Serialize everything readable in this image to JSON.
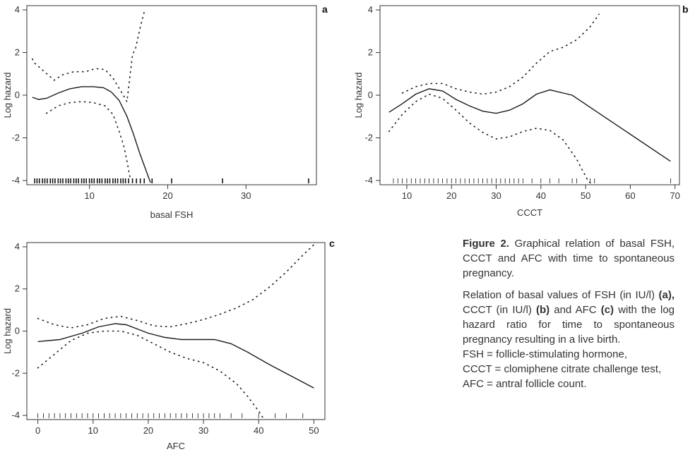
{
  "chart_data": [
    {
      "type": "line",
      "panel": "a",
      "xlabel": "basal FSH",
      "ylabel": "Log hazard",
      "xlim": [
        2,
        39
      ],
      "ylim": [
        -4.2,
        4.2
      ],
      "xticks": [
        10,
        20,
        30
      ],
      "yticks": [
        -4,
        -2,
        0,
        2,
        4
      ],
      "series": [
        {
          "style": "solid",
          "points": [
            [
              2.7,
              -0.1
            ],
            [
              3.5,
              -0.2
            ],
            [
              4.5,
              -0.15
            ],
            [
              6,
              0.1
            ],
            [
              7.5,
              0.3
            ],
            [
              9,
              0.4
            ],
            [
              10.5,
              0.4
            ],
            [
              11.8,
              0.35
            ],
            [
              12.8,
              0.15
            ],
            [
              13.8,
              -0.25
            ],
            [
              14.8,
              -1.0
            ],
            [
              15.6,
              -1.8
            ],
            [
              16.4,
              -2.7
            ],
            [
              17.2,
              -3.5
            ],
            [
              17.8,
              -4.1
            ]
          ]
        },
        {
          "style": "dotted",
          "points": [
            [
              2.7,
              1.7
            ],
            [
              3,
              1.5
            ],
            [
              5.5,
              0.7
            ],
            [
              6.5,
              0.95
            ],
            [
              8,
              1.1
            ],
            [
              9.5,
              1.1
            ],
            [
              10.8,
              1.25
            ],
            [
              12,
              1.2
            ],
            [
              13,
              0.8
            ],
            [
              14,
              0.2
            ],
            [
              14.8,
              -0.3
            ],
            [
              15.5,
              1.9
            ],
            [
              15.9,
              2.2
            ],
            [
              16.5,
              3.2
            ],
            [
              17,
              3.9
            ]
          ]
        },
        {
          "style": "dotted",
          "points": [
            [
              4.5,
              -0.85
            ],
            [
              6,
              -0.5
            ],
            [
              7.5,
              -0.35
            ],
            [
              9,
              -0.3
            ],
            [
              10.5,
              -0.35
            ],
            [
              12,
              -0.5
            ],
            [
              13,
              -0.9
            ],
            [
              13.8,
              -1.7
            ],
            [
              14.4,
              -2.4
            ],
            [
              14.8,
              -3.1
            ],
            [
              15.2,
              -3.9
            ]
          ]
        }
      ],
      "rug": [
        3,
        3.3,
        3.6,
        4,
        4.3,
        4.6,
        5,
        5.3,
        5.6,
        6,
        6.3,
        6.6,
        7,
        7.3,
        7.6,
        8,
        8.3,
        8.6,
        9,
        9.3,
        9.6,
        10,
        10.3,
        10.6,
        11,
        11.3,
        11.6,
        12,
        12.3,
        12.6,
        13,
        13.3,
        13.6,
        14,
        14.3,
        14.6,
        15,
        15.5,
        16,
        16.5,
        17,
        18,
        20.5,
        27,
        38
      ]
    },
    {
      "type": "line",
      "panel": "b",
      "xlabel": "CCCT",
      "ylabel": "Log hazard",
      "xlim": [
        4,
        71
      ],
      "ylim": [
        -4.2,
        4.2
      ],
      "xticks": [
        10,
        20,
        30,
        40,
        50,
        60,
        70
      ],
      "yticks": [
        -4,
        -2,
        0,
        2,
        4
      ],
      "series": [
        {
          "style": "solid",
          "points": [
            [
              6,
              -0.8
            ],
            [
              9,
              -0.4
            ],
            [
              12,
              0.05
            ],
            [
              15,
              0.3
            ],
            [
              18,
              0.2
            ],
            [
              21,
              -0.2
            ],
            [
              24,
              -0.5
            ],
            [
              27,
              -0.75
            ],
            [
              30,
              -0.85
            ],
            [
              33,
              -0.7
            ],
            [
              36,
              -0.4
            ],
            [
              39,
              0.05
            ],
            [
              42,
              0.25
            ],
            [
              47,
              0.0
            ],
            [
              69,
              -3.1
            ]
          ]
        },
        {
          "style": "dotted",
          "points": [
            [
              9,
              0.1
            ],
            [
              12,
              0.4
            ],
            [
              15,
              0.55
            ],
            [
              18,
              0.55
            ],
            [
              21,
              0.3
            ],
            [
              24,
              0.15
            ],
            [
              27,
              0.05
            ],
            [
              30,
              0.15
            ],
            [
              33,
              0.4
            ],
            [
              36,
              0.85
            ],
            [
              39,
              1.5
            ],
            [
              42,
              2.05
            ],
            [
              45,
              2.25
            ],
            [
              48,
              2.6
            ],
            [
              51,
              3.2
            ],
            [
              53,
              3.8
            ]
          ]
        },
        {
          "style": "dotted",
          "points": [
            [
              6,
              -1.7
            ],
            [
              9,
              -0.9
            ],
            [
              12,
              -0.3
            ],
            [
              15,
              0.05
            ],
            [
              18,
              -0.15
            ],
            [
              21,
              -0.7
            ],
            [
              24,
              -1.3
            ],
            [
              27,
              -1.75
            ],
            [
              30,
              -2.05
            ],
            [
              33,
              -1.95
            ],
            [
              36,
              -1.7
            ],
            [
              39,
              -1.55
            ],
            [
              42,
              -1.65
            ],
            [
              45,
              -2.1
            ],
            [
              48,
              -3.0
            ],
            [
              50.5,
              -4.0
            ],
            [
              51.5,
              -4.2
            ]
          ]
        }
      ],
      "rug": [
        7,
        8,
        9,
        10,
        11,
        12,
        13,
        14,
        15,
        16,
        17,
        18,
        19,
        20,
        21,
        22,
        23,
        24,
        25,
        26,
        27,
        28,
        29,
        30,
        31,
        32,
        33,
        34,
        35,
        36,
        38,
        40,
        42,
        44,
        47,
        48,
        51,
        52,
        69
      ]
    },
    {
      "type": "line",
      "panel": "c",
      "xlabel": "AFC",
      "ylabel": "Log hazard",
      "xlim": [
        -2,
        52
      ],
      "ylim": [
        -4.2,
        4.2
      ],
      "xticks": [
        0,
        10,
        20,
        30,
        40,
        50
      ],
      "yticks": [
        -4,
        -2,
        0,
        2,
        4
      ],
      "series": [
        {
          "style": "solid",
          "points": [
            [
              0,
              -0.5
            ],
            [
              4,
              -0.4
            ],
            [
              8,
              -0.1
            ],
            [
              11,
              0.2
            ],
            [
              14,
              0.35
            ],
            [
              16,
              0.3
            ],
            [
              18,
              0.1
            ],
            [
              20,
              -0.1
            ],
            [
              23,
              -0.3
            ],
            [
              26,
              -0.4
            ],
            [
              29,
              -0.4
            ],
            [
              32,
              -0.4
            ],
            [
              35,
              -0.6
            ],
            [
              38,
              -1.0
            ],
            [
              42,
              -1.6
            ],
            [
              50,
              -2.7
            ]
          ]
        },
        {
          "style": "dotted",
          "points": [
            [
              0,
              0.6
            ],
            [
              3,
              0.3
            ],
            [
              6,
              0.15
            ],
            [
              9,
              0.3
            ],
            [
              12,
              0.6
            ],
            [
              15,
              0.7
            ],
            [
              18,
              0.5
            ],
            [
              21,
              0.25
            ],
            [
              24,
              0.2
            ],
            [
              27,
              0.35
            ],
            [
              30,
              0.55
            ],
            [
              33,
              0.8
            ],
            [
              36,
              1.1
            ],
            [
              39,
              1.5
            ],
            [
              42,
              2.1
            ],
            [
              45,
              2.8
            ],
            [
              48,
              3.6
            ],
            [
              50,
              4.1
            ]
          ]
        },
        {
          "style": "dotted",
          "points": [
            [
              0,
              -1.75
            ],
            [
              3,
              -1.1
            ],
            [
              6,
              -0.45
            ],
            [
              9,
              -0.1
            ],
            [
              12,
              0.0
            ],
            [
              15,
              0.0
            ],
            [
              18,
              -0.2
            ],
            [
              21,
              -0.6
            ],
            [
              24,
              -1.0
            ],
            [
              27,
              -1.3
            ],
            [
              30,
              -1.5
            ],
            [
              33,
              -1.9
            ],
            [
              36,
              -2.5
            ],
            [
              38,
              -3.1
            ],
            [
              40,
              -3.8
            ],
            [
              41,
              -4.2
            ]
          ]
        }
      ],
      "rug": [
        0,
        1,
        2,
        3,
        4,
        5,
        6,
        7,
        8,
        9,
        10,
        11,
        12,
        13,
        14,
        15,
        16,
        17,
        18,
        19,
        20,
        21,
        22,
        23,
        24,
        25,
        26,
        27,
        28,
        29,
        30,
        31,
        32,
        33,
        35,
        37,
        40,
        43,
        45,
        48
      ]
    }
  ],
  "caption": {
    "fig_label": "Figure 2.",
    "title_text": " Graphical relation of basal FSH, CCCT and AFC with time to spontaneous pregnancy.",
    "body_1": "Relation of basal values of FSH (in IU/l) ",
    "tag_a": "(a),",
    "body_2": " CCCT (in IU/l) ",
    "tag_b": "(b)",
    "body_3": " and AFC ",
    "tag_c": "(c)",
    "body_4": " with the log hazard ratio for time to spontaneous pregnancy resulting in a live birth.",
    "abbrev_1": "FSH = follicle-stimulating hormone,",
    "abbrev_2": "CCCT = clomiphene citrate challenge test,",
    "abbrev_3": "AFC = antral follicle count."
  }
}
